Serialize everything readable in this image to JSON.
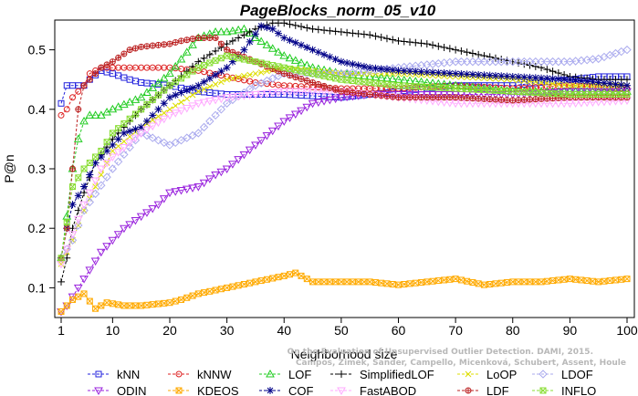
{
  "chart_data": {
    "type": "line",
    "title": "PageBlocks_norm_05_v10",
    "xlabel": "Neighborhood size",
    "ylabel": "P@n",
    "xlim": [
      1,
      100
    ],
    "ylim": [
      0.05,
      0.55
    ],
    "x_ticks": [
      1,
      10,
      20,
      30,
      40,
      50,
      60,
      70,
      80,
      90,
      100
    ],
    "y_ticks": [
      0.1,
      0.2,
      0.3,
      0.4,
      0.5
    ],
    "grid": false,
    "legend_position": "bottom",
    "watermark": [
      "Campos, Zimek, Sander, Campello, Micenková, Schubert, Assent, Houle",
      "On the Evaluation of Unsupervised Outlier Detection. DAMI, 2015."
    ],
    "series": [
      {
        "name": "kNN",
        "color": "#2222dd",
        "marker": "square",
        "points": [
          [
            1,
            0.41
          ],
          [
            2,
            0.44
          ],
          [
            5,
            0.44
          ],
          [
            6,
            0.45
          ],
          [
            8,
            0.465
          ],
          [
            10,
            0.46
          ],
          [
            13,
            0.45
          ],
          [
            15,
            0.445
          ],
          [
            20,
            0.44
          ],
          [
            25,
            0.43
          ],
          [
            30,
            0.425
          ],
          [
            35,
            0.425
          ],
          [
            40,
            0.425
          ],
          [
            50,
            0.42
          ],
          [
            60,
            0.43
          ],
          [
            70,
            0.44
          ],
          [
            80,
            0.44
          ],
          [
            90,
            0.45
          ],
          [
            95,
            0.455
          ],
          [
            100,
            0.455
          ]
        ]
      },
      {
        "name": "kNNW",
        "color": "#dd2222",
        "marker": "circle",
        "points": [
          [
            1,
            0.39
          ],
          [
            2,
            0.4
          ],
          [
            3,
            0.42
          ],
          [
            5,
            0.44
          ],
          [
            6,
            0.46
          ],
          [
            8,
            0.47
          ],
          [
            10,
            0.47
          ],
          [
            15,
            0.47
          ],
          [
            20,
            0.47
          ],
          [
            25,
            0.465
          ],
          [
            30,
            0.455
          ],
          [
            35,
            0.445
          ],
          [
            40,
            0.44
          ],
          [
            50,
            0.435
          ],
          [
            60,
            0.435
          ],
          [
            70,
            0.44
          ],
          [
            80,
            0.435
          ],
          [
            90,
            0.44
          ],
          [
            100,
            0.435
          ]
        ]
      },
      {
        "name": "LOF",
        "color": "#22cc22",
        "marker": "triangle-up",
        "points": [
          [
            1,
            0.15
          ],
          [
            2,
            0.22
          ],
          [
            3,
            0.3
          ],
          [
            4,
            0.35
          ],
          [
            5,
            0.38
          ],
          [
            6,
            0.39
          ],
          [
            8,
            0.39
          ],
          [
            10,
            0.4
          ],
          [
            15,
            0.42
          ],
          [
            20,
            0.46
          ],
          [
            25,
            0.52
          ],
          [
            28,
            0.53
          ],
          [
            30,
            0.53
          ],
          [
            33,
            0.535
          ],
          [
            35,
            0.52
          ],
          [
            40,
            0.49
          ],
          [
            45,
            0.47
          ],
          [
            50,
            0.46
          ],
          [
            60,
            0.45
          ],
          [
            70,
            0.44
          ],
          [
            80,
            0.43
          ],
          [
            90,
            0.43
          ],
          [
            100,
            0.43
          ]
        ]
      },
      {
        "name": "SimplifiedLOF",
        "color": "#000000",
        "marker": "plus",
        "points": [
          [
            1,
            0.11
          ],
          [
            2,
            0.15
          ],
          [
            3,
            0.2
          ],
          [
            5,
            0.26
          ],
          [
            7,
            0.31
          ],
          [
            10,
            0.35
          ],
          [
            15,
            0.4
          ],
          [
            20,
            0.44
          ],
          [
            25,
            0.48
          ],
          [
            30,
            0.51
          ],
          [
            35,
            0.535
          ],
          [
            38,
            0.545
          ],
          [
            40,
            0.545
          ],
          [
            45,
            0.535
          ],
          [
            50,
            0.53
          ],
          [
            55,
            0.525
          ],
          [
            60,
            0.515
          ],
          [
            65,
            0.51
          ],
          [
            70,
            0.5
          ],
          [
            75,
            0.49
          ],
          [
            80,
            0.48
          ],
          [
            85,
            0.47
          ],
          [
            90,
            0.455
          ],
          [
            95,
            0.45
          ],
          [
            100,
            0.45
          ]
        ]
      },
      {
        "name": "LoOP",
        "color": "#dddd00",
        "marker": "cross",
        "points": [
          [
            1,
            0.14
          ],
          [
            3,
            0.18
          ],
          [
            5,
            0.23
          ],
          [
            8,
            0.29
          ],
          [
            10,
            0.33
          ],
          [
            15,
            0.37
          ],
          [
            20,
            0.4
          ],
          [
            25,
            0.43
          ],
          [
            30,
            0.45
          ],
          [
            35,
            0.46
          ],
          [
            40,
            0.47
          ],
          [
            45,
            0.465
          ],
          [
            50,
            0.46
          ],
          [
            60,
            0.46
          ],
          [
            70,
            0.455
          ],
          [
            80,
            0.45
          ],
          [
            90,
            0.44
          ],
          [
            100,
            0.44
          ]
        ]
      },
      {
        "name": "LDOF",
        "color": "#aaaaee",
        "marker": "diamond",
        "points": [
          [
            1,
            0.15
          ],
          [
            3,
            0.18
          ],
          [
            5,
            0.23
          ],
          [
            10,
            0.3
          ],
          [
            15,
            0.36
          ],
          [
            20,
            0.34
          ],
          [
            25,
            0.36
          ],
          [
            30,
            0.41
          ],
          [
            35,
            0.44
          ],
          [
            40,
            0.46
          ],
          [
            50,
            0.46
          ],
          [
            60,
            0.47
          ],
          [
            70,
            0.48
          ],
          [
            80,
            0.48
          ],
          [
            90,
            0.48
          ],
          [
            95,
            0.485
          ],
          [
            100,
            0.5
          ]
        ]
      },
      {
        "name": "ODIN",
        "color": "#9922dd",
        "marker": "triangle-down",
        "points": [
          [
            1,
            0.06
          ],
          [
            2,
            0.07
          ],
          [
            4,
            0.1
          ],
          [
            6,
            0.13
          ],
          [
            8,
            0.16
          ],
          [
            10,
            0.18
          ],
          [
            12,
            0.2
          ],
          [
            15,
            0.22
          ],
          [
            18,
            0.24
          ],
          [
            20,
            0.26
          ],
          [
            25,
            0.27
          ],
          [
            28,
            0.29
          ],
          [
            30,
            0.3
          ],
          [
            35,
            0.34
          ],
          [
            40,
            0.38
          ],
          [
            45,
            0.41
          ],
          [
            50,
            0.42
          ],
          [
            55,
            0.425
          ],
          [
            60,
            0.425
          ],
          [
            70,
            0.425
          ],
          [
            80,
            0.425
          ],
          [
            90,
            0.43
          ],
          [
            100,
            0.43
          ]
        ]
      },
      {
        "name": "KDEOS",
        "color": "#ffaa00",
        "marker": "square-x",
        "points": [
          [
            1,
            0.06
          ],
          [
            3,
            0.08
          ],
          [
            5,
            0.09
          ],
          [
            7,
            0.065
          ],
          [
            9,
            0.075
          ],
          [
            12,
            0.07
          ],
          [
            15,
            0.07
          ],
          [
            20,
            0.075
          ],
          [
            22,
            0.08
          ],
          [
            25,
            0.09
          ],
          [
            30,
            0.1
          ],
          [
            35,
            0.11
          ],
          [
            40,
            0.12
          ],
          [
            42,
            0.125
          ],
          [
            45,
            0.11
          ],
          [
            50,
            0.11
          ],
          [
            55,
            0.11
          ],
          [
            60,
            0.105
          ],
          [
            65,
            0.11
          ],
          [
            70,
            0.115
          ],
          [
            75,
            0.105
          ],
          [
            80,
            0.11
          ],
          [
            85,
            0.11
          ],
          [
            90,
            0.115
          ],
          [
            95,
            0.11
          ],
          [
            100,
            0.115
          ]
        ]
      },
      {
        "name": "COF",
        "color": "#000088",
        "marker": "asterisk",
        "points": [
          [
            1,
            0.15
          ],
          [
            2,
            0.2
          ],
          [
            3,
            0.24
          ],
          [
            5,
            0.27
          ],
          [
            7,
            0.31
          ],
          [
            10,
            0.34
          ],
          [
            12,
            0.36
          ],
          [
            15,
            0.37
          ],
          [
            18,
            0.4
          ],
          [
            20,
            0.42
          ],
          [
            25,
            0.44
          ],
          [
            30,
            0.47
          ],
          [
            33,
            0.5
          ],
          [
            36,
            0.54
          ],
          [
            38,
            0.535
          ],
          [
            40,
            0.52
          ],
          [
            45,
            0.5
          ],
          [
            50,
            0.48
          ],
          [
            55,
            0.47
          ],
          [
            60,
            0.465
          ],
          [
            70,
            0.46
          ],
          [
            80,
            0.455
          ],
          [
            90,
            0.45
          ],
          [
            100,
            0.44
          ]
        ]
      },
      {
        "name": "FastABOD",
        "color": "#ffaaff",
        "marker": "triangle-down-open",
        "points": [
          [
            1,
            0.14
          ],
          [
            3,
            0.19
          ],
          [
            5,
            0.24
          ],
          [
            8,
            0.3
          ],
          [
            10,
            0.32
          ],
          [
            15,
            0.36
          ],
          [
            20,
            0.39
          ],
          [
            25,
            0.41
          ],
          [
            30,
            0.42
          ],
          [
            40,
            0.43
          ],
          [
            50,
            0.43
          ],
          [
            60,
            0.42
          ],
          [
            70,
            0.41
          ],
          [
            80,
            0.41
          ],
          [
            90,
            0.41
          ],
          [
            100,
            0.415
          ]
        ]
      },
      {
        "name": "LDF",
        "color": "#bb2222",
        "marker": "circle-plus",
        "points": [
          [
            1,
            0.15
          ],
          [
            2,
            0.2
          ],
          [
            3,
            0.3
          ],
          [
            4,
            0.4
          ],
          [
            5,
            0.44
          ],
          [
            8,
            0.47
          ],
          [
            10,
            0.48
          ],
          [
            13,
            0.5
          ],
          [
            15,
            0.505
          ],
          [
            20,
            0.51
          ],
          [
            22,
            0.515
          ],
          [
            25,
            0.52
          ],
          [
            28,
            0.52
          ],
          [
            30,
            0.5
          ],
          [
            35,
            0.48
          ],
          [
            40,
            0.46
          ],
          [
            50,
            0.43
          ],
          [
            60,
            0.42
          ],
          [
            70,
            0.42
          ],
          [
            80,
            0.415
          ],
          [
            90,
            0.42
          ],
          [
            100,
            0.42
          ]
        ]
      },
      {
        "name": "INFLO",
        "color": "#88dd33",
        "marker": "square-x",
        "points": [
          [
            1,
            0.15
          ],
          [
            2,
            0.21
          ],
          [
            3,
            0.27
          ],
          [
            5,
            0.3
          ],
          [
            8,
            0.33
          ],
          [
            10,
            0.36
          ],
          [
            15,
            0.4
          ],
          [
            20,
            0.44
          ],
          [
            25,
            0.47
          ],
          [
            30,
            0.49
          ],
          [
            35,
            0.48
          ],
          [
            40,
            0.47
          ],
          [
            50,
            0.45
          ],
          [
            60,
            0.44
          ],
          [
            70,
            0.435
          ],
          [
            80,
            0.43
          ],
          [
            90,
            0.425
          ],
          [
            100,
            0.425
          ]
        ]
      }
    ]
  }
}
